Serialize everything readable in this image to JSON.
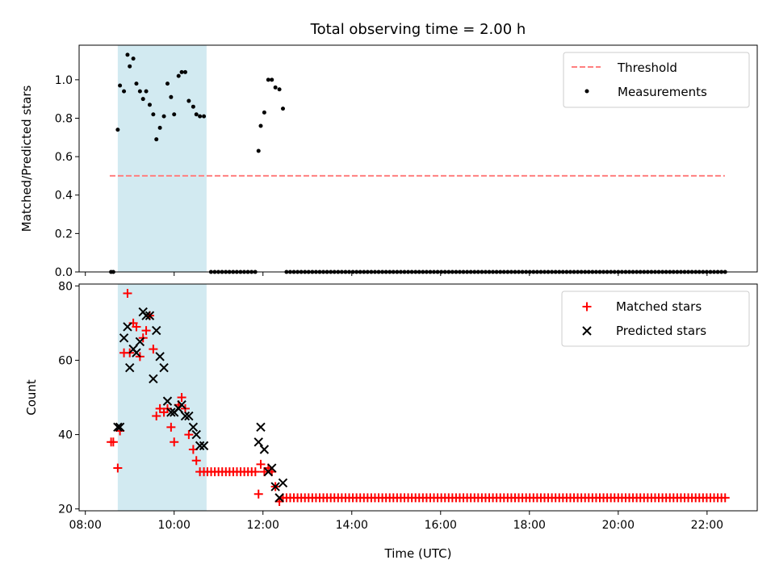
{
  "chart_data": [
    {
      "type": "scatter",
      "title": "Total observing time = 2.00 h",
      "xlabel": "",
      "ylabel": "Matched/Predicted stars",
      "x_unit": "hours (UTC)",
      "xlim": [
        7.86,
        23.13
      ],
      "ylim": [
        0,
        1.18
      ],
      "yticks": [
        0.0,
        0.2,
        0.4,
        0.6,
        0.8,
        1.0
      ],
      "ytick_labels": [
        "0.0",
        "0.2",
        "0.4",
        "0.6",
        "0.8",
        "1.0"
      ],
      "highlight_band": {
        "x_start": 8.73,
        "x_end": 10.73,
        "color": "#add8e6"
      },
      "legend": {
        "position": "upper right",
        "entries": [
          "Threshold",
          "Measurements"
        ]
      },
      "series": [
        {
          "name": "Threshold",
          "kind": "dashed-line",
          "color": "#ff7f7f",
          "x": [
            8.55,
            22.4
          ],
          "y": [
            0.5,
            0.5
          ]
        },
        {
          "name": "Measurements",
          "kind": "dots",
          "color": "#000000",
          "x": [
            8.58,
            8.63,
            8.73,
            8.78,
            8.87,
            8.95,
            9.0,
            9.08,
            9.15,
            9.23,
            9.3,
            9.37,
            9.45,
            9.53,
            9.6,
            9.68,
            9.77,
            9.85,
            9.93,
            10.0,
            10.1,
            10.17,
            10.25,
            10.33,
            10.43,
            10.5,
            10.58,
            10.67,
            11.9,
            11.95,
            12.03,
            12.12,
            12.2,
            12.28,
            12.37,
            12.45
          ],
          "y": [
            0.0,
            0.0,
            0.74,
            0.97,
            0.94,
            1.13,
            1.07,
            1.11,
            0.98,
            0.94,
            0.9,
            0.94,
            0.87,
            0.82,
            0.69,
            0.75,
            0.81,
            0.98,
            0.91,
            0.82,
            1.02,
            1.04,
            1.04,
            0.89,
            0.86,
            0.82,
            0.81,
            0.81,
            0.63,
            0.76,
            0.83,
            1.0,
            1.0,
            0.96,
            0.95,
            0.85
          ]
        }
      ],
      "zero_runs": [
        {
          "x_start": 10.83,
          "x_end": 11.85,
          "step": 0.083
        },
        {
          "x_start": 12.53,
          "x_end": 22.43,
          "step": 0.083
        }
      ]
    },
    {
      "type": "scatter",
      "title": "",
      "xlabel": "Time (UTC)",
      "ylabel": "Count",
      "xlim": [
        7.86,
        23.13
      ],
      "ylim": [
        19.5,
        80.5
      ],
      "yticks": [
        20,
        40,
        60,
        80
      ],
      "xticks": [
        8,
        10,
        12,
        14,
        16,
        18,
        20,
        22
      ],
      "xtick_labels": [
        "08:00",
        "10:00",
        "12:00",
        "14:00",
        "16:00",
        "18:00",
        "20:00",
        "22:00"
      ],
      "highlight_band": {
        "x_start": 8.73,
        "x_end": 10.73,
        "color": "#add8e6"
      },
      "legend": {
        "position": "upper right",
        "entries": [
          "Matched stars",
          "Predicted stars"
        ]
      },
      "series": [
        {
          "name": "Matched stars",
          "marker": "plus",
          "color": "#ff0000",
          "x": [
            8.58,
            8.63,
            8.73,
            8.78,
            8.87,
            8.95,
            9.0,
            9.08,
            9.15,
            9.23,
            9.3,
            9.37,
            9.45,
            9.53,
            9.6,
            9.68,
            9.77,
            9.85,
            9.93,
            10.0,
            10.1,
            10.17,
            10.25,
            10.33,
            10.43,
            10.5,
            10.58,
            10.67,
            11.9,
            11.95,
            12.03,
            12.12,
            12.2,
            12.28,
            12.37,
            12.45
          ],
          "y": [
            38,
            38,
            31,
            41,
            62,
            78,
            62,
            70,
            69,
            61,
            66,
            68,
            72,
            63,
            45,
            47,
            46,
            47,
            42,
            38,
            48,
            50,
            47,
            40,
            36,
            33,
            30,
            30,
            24,
            32,
            30,
            31,
            30,
            26,
            22,
            23
          ]
        },
        {
          "name": "Predicted stars",
          "marker": "x",
          "color": "#000000",
          "x": [
            8.73,
            8.78,
            8.87,
            8.95,
            9.0,
            9.08,
            9.15,
            9.23,
            9.3,
            9.37,
            9.45,
            9.53,
            9.6,
            9.68,
            9.77,
            9.85,
            9.93,
            10.0,
            10.1,
            10.17,
            10.25,
            10.33,
            10.43,
            10.5,
            10.58,
            10.67,
            11.9,
            11.95,
            12.03,
            12.12,
            12.2,
            12.28,
            12.37,
            12.45
          ],
          "y": [
            42,
            42,
            66,
            69,
            58,
            63,
            62,
            65,
            73,
            72,
            72,
            55,
            68,
            61,
            58,
            49,
            46,
            46,
            47,
            48,
            45,
            45,
            42,
            40,
            37,
            37,
            38,
            42,
            36,
            30,
            31,
            26,
            23,
            27
          ]
        }
      ],
      "constant_runs": [
        {
          "series": "Matched stars",
          "x_start": 10.75,
          "x_end": 11.83,
          "step": 0.083,
          "y": 30
        },
        {
          "series": "Matched stars",
          "x_start": 12.53,
          "x_end": 22.43,
          "step": 0.083,
          "y": 23
        }
      ]
    }
  ]
}
